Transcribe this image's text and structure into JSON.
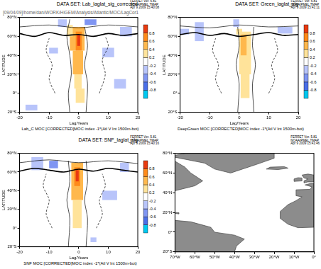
{
  "chart_data": [
    {
      "type": "contour",
      "title": "DATA SET: Lab_laglat_sig_corrected",
      "subtitle": "[09/04/09]/home/dan/WORK/HiGEM/Analysis/Atlantic/MOC/LagCor1",
      "annotations": [
        "FERRET Ver. 5.81",
        "NOAA/PMEL TMAP",
        "Apr 9 2009 15:40:08"
      ],
      "caption": "Lab_C MOC [CORRECTED]MOC index -1*(Atl V lnt 1500m-bot)",
      "xlabel": "Lag/Years",
      "ylabel": "LATITUDE",
      "xlim": [
        -20,
        20
      ],
      "xticks": [
        -20,
        -10,
        0,
        10,
        20
      ],
      "ylim": [
        -20,
        80
      ],
      "yticks": [
        {
          "value": -20,
          "label": "20°S"
        },
        {
          "value": 0,
          "label": "0°"
        },
        {
          "value": 20,
          "label": "20°N"
        },
        {
          "value": 40,
          "label": "40°N"
        },
        {
          "value": 60,
          "label": "60°N"
        },
        {
          "value": 80,
          "label": "80°N"
        }
      ],
      "colorbar": {
        "range": [
          -1,
          1
        ],
        "ticks": [
          -0.8,
          -0.6,
          -0.4,
          -0.2,
          0.2,
          0.4,
          0.6,
          0.8
        ]
      },
      "cells": [
        {
          "x": [
            -3,
            2
          ],
          "y": [
            45,
            70
          ],
          "value": 0.5
        },
        {
          "x": [
            -1,
            1
          ],
          "y": [
            45,
            65
          ],
          "value": 0.7
        },
        {
          "x": [
            -0.5,
            0.5
          ],
          "y": [
            50,
            62
          ],
          "value": 0.85
        },
        {
          "x": [
            -2,
            1.5
          ],
          "y": [
            20,
            45
          ],
          "value": 0.4
        },
        {
          "x": [
            -1.5,
            1
          ],
          "y": [
            5,
            20
          ],
          "value": 0.3
        },
        {
          "x": [
            -1,
            2
          ],
          "y": [
            -10,
            5
          ],
          "value": 0.25
        },
        {
          "x": [
            -4,
            -2
          ],
          "y": [
            60,
            72
          ],
          "value": 0.3
        },
        {
          "x": [
            -10,
            -7
          ],
          "y": [
            42,
            48
          ],
          "value": -0.3
        },
        {
          "x": [
            -7,
            -4
          ],
          "y": [
            70,
            78
          ],
          "value": -0.3
        },
        {
          "x": [
            8,
            12
          ],
          "y": [
            38,
            48
          ],
          "value": -0.3
        },
        {
          "x": [
            12,
            16
          ],
          "y": [
            5,
            15
          ],
          "value": -0.3
        },
        {
          "x": [
            -18,
            -14
          ],
          "y": [
            -18,
            -12
          ],
          "value": -0.3
        },
        {
          "x": [
            14,
            18
          ],
          "y": [
            60,
            70
          ],
          "value": -0.3
        },
        {
          "x": [
            2,
            6
          ],
          "y": [
            72,
            78
          ],
          "value": -0.45
        }
      ],
      "contours": [
        {
          "level": 0,
          "x": [
            -20,
            -15,
            -10,
            -5,
            0,
            5,
            10,
            15,
            20
          ],
          "y": [
            63,
            60,
            64,
            61,
            62,
            60,
            63,
            61,
            63
          ]
        },
        {
          "level": 0.2,
          "x": [
            -3,
            -3.5,
            -2.5,
            -3,
            -4,
            -3
          ],
          "y": [
            -20,
            0,
            20,
            40,
            60,
            78
          ]
        },
        {
          "level": 0.2,
          "x": [
            2.5,
            3,
            2,
            3,
            2
          ],
          "y": [
            -20,
            10,
            30,
            50,
            70
          ]
        },
        {
          "level": -0.2,
          "x": [
            7,
            9,
            8,
            10,
            9
          ],
          "y": [
            0,
            20,
            35,
            50,
            60
          ]
        },
        {
          "level": -0.2,
          "x": [
            -8,
            -10,
            -9,
            -11,
            -10
          ],
          "y": [
            0,
            15,
            30,
            45,
            58
          ]
        },
        {
          "level": 0.2,
          "x": [
            -20,
            -10,
            0,
            10,
            20
          ],
          "y": [
            70,
            72,
            69,
            72,
            70
          ]
        }
      ]
    },
    {
      "type": "contour",
      "title": "DATA SET: Green_laglat_sig",
      "annotations": [
        "FERRET Ver. 5.81",
        "NOAA/PMEL TMAP",
        "Apr 9 2009 15:41:11"
      ],
      "caption": "DeepGreen MOC [CORRECTED]MOC index -1*(Atl V lnt 1500m-bot)",
      "xlabel": "Lag/Years",
      "ylabel": "LATITUDE",
      "xlim": [
        -20,
        20
      ],
      "xticks": [
        -20,
        -10,
        0,
        10,
        20
      ],
      "ylim": [
        -20,
        80
      ],
      "yticks": [
        {
          "value": -20,
          "label": "20°S"
        },
        {
          "value": 0,
          "label": "0°"
        },
        {
          "value": 20,
          "label": "20°N"
        },
        {
          "value": 40,
          "label": "40°N"
        },
        {
          "value": 60,
          "label": "60°N"
        },
        {
          "value": 80,
          "label": "80°N"
        }
      ],
      "colorbar": {
        "range": [
          -1,
          1
        ],
        "ticks": [
          -0.8,
          -0.6,
          -0.4,
          -0.2,
          0.2,
          0.4,
          0.6,
          0.8
        ]
      },
      "cells": [
        {
          "x": [
            0,
            4
          ],
          "y": [
            20,
            65
          ],
          "value": 0.35
        },
        {
          "x": [
            0.5,
            2.5
          ],
          "y": [
            40,
            62
          ],
          "value": 0.5
        },
        {
          "x": [
            0.5,
            3.5
          ],
          "y": [
            -5,
            20
          ],
          "value": 0.3
        },
        {
          "x": [
            -1,
            1
          ],
          "y": [
            62,
            68
          ],
          "value": 0.3
        },
        {
          "x": [
            -15,
            -12
          ],
          "y": [
            55,
            75
          ],
          "value": -0.3
        },
        {
          "x": [
            13,
            18
          ],
          "y": [
            63,
            70
          ],
          "value": -0.3
        },
        {
          "x": [
            -2,
            0
          ],
          "y": [
            70,
            78
          ],
          "value": -0.3
        },
        {
          "x": [
            -20,
            -17
          ],
          "y": [
            62,
            68
          ],
          "value": -0.3
        }
      ],
      "contours": [
        {
          "level": 0,
          "x": [
            -20,
            -15,
            -10,
            -5,
            0,
            5,
            10,
            15,
            20
          ],
          "y": [
            62,
            64,
            61,
            63,
            60,
            62,
            64,
            61,
            62
          ]
        },
        {
          "level": 0.2,
          "x": [
            -0.5,
            0,
            -1,
            0,
            -0.5
          ],
          "y": [
            -20,
            10,
            30,
            50,
            70
          ]
        },
        {
          "level": 0.2,
          "x": [
            5,
            4.5,
            5.5,
            4.5,
            5
          ],
          "y": [
            -20,
            10,
            30,
            50,
            70
          ]
        },
        {
          "level": -0.2,
          "x": [
            -6,
            -8,
            -7,
            -9,
            -8
          ],
          "y": [
            0,
            15,
            30,
            45,
            58
          ]
        },
        {
          "level": -0.2,
          "x": [
            10,
            12,
            11,
            13,
            12
          ],
          "y": [
            0,
            15,
            30,
            45,
            58
          ]
        },
        {
          "level": 0.2,
          "x": [
            -20,
            -10,
            0,
            10,
            20
          ],
          "y": [
            71,
            69,
            72,
            70,
            71
          ]
        }
      ]
    },
    {
      "type": "contour",
      "title": "DATA SET: SNF_laglat_sig",
      "annotations": [
        "FERRET Ver. 5.81",
        "NOAA/PMEL TMAP",
        "Apr 9 2009 15:40:16"
      ],
      "caption": "SNF MOC [CORRECTED]MOC index -1*(Atl V lnt 1500m-bot)",
      "xlabel": "Lag/Years",
      "ylabel": "LATITUDE",
      "xlim": [
        -20,
        20
      ],
      "xticks": [
        -20,
        -10,
        0,
        10,
        20
      ],
      "ylim": [
        -20,
        80
      ],
      "yticks": [
        {
          "value": -20,
          "label": "20°S"
        },
        {
          "value": 0,
          "label": "0°"
        },
        {
          "value": 20,
          "label": "20°N"
        },
        {
          "value": 40,
          "label": "40°N"
        },
        {
          "value": 60,
          "label": "60°N"
        },
        {
          "value": 80,
          "label": "80°N"
        }
      ],
      "colorbar": {
        "range": [
          -1,
          1
        ],
        "ticks": [
          -0.8,
          -0.6,
          -0.4,
          -0.2,
          0.2,
          0.4,
          0.6,
          0.8
        ]
      },
      "cells": [
        {
          "x": [
            -2.5,
            1.5
          ],
          "y": [
            30,
            70
          ],
          "value": 0.45
        },
        {
          "x": [
            -1.5,
            0.5
          ],
          "y": [
            45,
            65
          ],
          "value": 0.65
        },
        {
          "x": [
            -1,
            0
          ],
          "y": [
            50,
            62
          ],
          "value": 0.85
        },
        {
          "x": [
            -2,
            1
          ],
          "y": [
            0,
            30
          ],
          "value": 0.3
        },
        {
          "x": [
            -16,
            -12
          ],
          "y": [
            62,
            76
          ],
          "value": -0.3
        },
        {
          "x": [
            8,
            13
          ],
          "y": [
            30,
            40
          ],
          "value": -0.3
        },
        {
          "x": [
            4,
            6
          ],
          "y": [
            -15,
            -10
          ],
          "value": -0.3
        },
        {
          "x": [
            14,
            17
          ],
          "y": [
            60,
            70
          ],
          "value": -0.3
        },
        {
          "x": [
            -10,
            -7
          ],
          "y": [
            64,
            72
          ],
          "value": -0.45
        }
      ],
      "contours": [
        {
          "level": 0,
          "x": [
            -20,
            -15,
            -10,
            -5,
            0,
            5,
            10,
            15,
            20
          ],
          "y": [
            61,
            64,
            62,
            60,
            63,
            61,
            64,
            62,
            60
          ]
        },
        {
          "level": 0.2,
          "x": [
            -3.5,
            -3,
            -4,
            -3,
            -3.5
          ],
          "y": [
            -20,
            10,
            30,
            50,
            72
          ]
        },
        {
          "level": 0.2,
          "x": [
            2.5,
            3,
            2,
            3,
            2.5
          ],
          "y": [
            -20,
            10,
            30,
            50,
            72
          ]
        },
        {
          "level": -0.2,
          "x": [
            6,
            8,
            7,
            9,
            8
          ],
          "y": [
            0,
            15,
            30,
            45,
            58
          ]
        },
        {
          "level": -0.2,
          "x": [
            -9,
            -11,
            -10,
            -12,
            -11
          ],
          "y": [
            0,
            15,
            30,
            45,
            58
          ]
        },
        {
          "level": 0.2,
          "x": [
            -20,
            -10,
            0,
            10,
            20
          ],
          "y": [
            70,
            73,
            70,
            72,
            69
          ]
        }
      ]
    },
    {
      "type": "map",
      "annotations": [
        "FERRET Ver. 5.81",
        "NOAA/PMEL TMAP",
        "Apr 9 2009 15:41:46"
      ],
      "color": "#8c8c8c",
      "xlim": [
        -70,
        0
      ],
      "xticks": [
        {
          "value": -70,
          "label": "70°W"
        },
        {
          "value": -60,
          "label": "60°W"
        },
        {
          "value": -50,
          "label": "50°W"
        },
        {
          "value": -40,
          "label": "40°W"
        },
        {
          "value": -30,
          "label": "30°W"
        },
        {
          "value": -20,
          "label": "20°W"
        },
        {
          "value": -10,
          "label": "10°W"
        },
        {
          "value": 0,
          "label": "0°"
        }
      ],
      "ylim": [
        -20,
        80
      ],
      "yticks": [
        {
          "value": -20,
          "label": "20°S"
        },
        {
          "value": 0,
          "label": "0°"
        },
        {
          "value": 20,
          "label": "20°N"
        },
        {
          "value": 40,
          "label": "40°N"
        },
        {
          "value": 60,
          "label": "60°N"
        },
        {
          "value": 80,
          "label": "80°N"
        }
      ],
      "land": [
        [
          [
            -70,
            72
          ],
          [
            -65,
            66
          ],
          [
            -62,
            60
          ],
          [
            -56,
            52
          ],
          [
            -60,
            47
          ],
          [
            -66,
            44
          ],
          [
            -70,
            42
          ]
        ],
        [
          [
            -70,
            78
          ],
          [
            -60,
            82
          ],
          [
            -20,
            82
          ],
          [
            -20,
            75
          ],
          [
            -30,
            68
          ],
          [
            -42,
            60
          ],
          [
            -50,
            64
          ],
          [
            -55,
            70
          ],
          [
            -70,
            76
          ]
        ],
        [
          [
            -70,
            12
          ],
          [
            -62,
            10.5
          ],
          [
            -52,
            5
          ],
          [
            -50,
            0
          ],
          [
            -40,
            -3
          ],
          [
            -35,
            -7
          ],
          [
            -39,
            -14
          ],
          [
            -40,
            -20
          ],
          [
            -70,
            -20
          ]
        ],
        [
          [
            0,
            5
          ],
          [
            -8,
            4.5
          ],
          [
            -13,
            8
          ],
          [
            -17,
            14
          ],
          [
            -17,
            21
          ],
          [
            -13,
            28
          ],
          [
            -9,
            32
          ],
          [
            -6,
            35.8
          ],
          [
            -9,
            37
          ],
          [
            -9,
            43
          ],
          [
            -2,
            43.5
          ],
          [
            -1,
            46
          ],
          [
            -4.5,
            48
          ],
          [
            -1.5,
            49.5
          ],
          [
            0,
            49.5
          ]
        ],
        [
          [
            -5,
            50
          ],
          [
            -3,
            51
          ],
          [
            0,
            51
          ],
          [
            0,
            58
          ],
          [
            -3,
            59
          ],
          [
            -6,
            58
          ],
          [
            -5,
            55
          ],
          [
            -3,
            54
          ],
          [
            -5,
            52
          ]
        ],
        [
          [
            -10,
            51.5
          ],
          [
            -6,
            52
          ],
          [
            -6,
            55
          ],
          [
            -8,
            55.3
          ],
          [
            -10,
            54
          ]
        ],
        [
          [
            -24,
            64
          ],
          [
            -22,
            66
          ],
          [
            -15,
            66.5
          ],
          [
            -13,
            65
          ],
          [
            -18,
            63.5
          ]
        ],
        [
          [
            -73,
            20
          ],
          [
            -68,
            18.5
          ],
          [
            -68,
            19.8
          ]
        ]
      ]
    }
  ]
}
